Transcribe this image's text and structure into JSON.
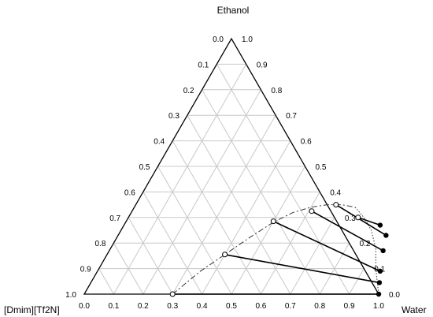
{
  "chart_data": {
    "type": "ternary",
    "title": "",
    "vertices": {
      "top": "Ethanol",
      "left": "[Dmim][Tf2N]",
      "right": "Water"
    },
    "tick_labels": {
      "bottom": [
        "0.0",
        "0.1",
        "0.2",
        "0.3",
        "0.4",
        "0.5",
        "0.6",
        "0.7",
        "0.8",
        "0.9",
        "1.0"
      ],
      "left": [
        "0.0",
        "0.1",
        "0.2",
        "0.3",
        "0.4",
        "0.5",
        "0.6",
        "0.7",
        "0.8",
        "0.9",
        "1.0"
      ],
      "right": [
        "1.0",
        "0.9",
        "0.8",
        "0.7",
        "0.6",
        "0.5",
        "0.4",
        "0.3",
        "0.2",
        "0.1",
        "0.0"
      ]
    },
    "grid": true,
    "composition_note": "points given as [water, ethanol] mole fractions; [Dmim][Tf2N] = 1 - water - ethanol",
    "binodal_curve": {
      "style": "dash-dot",
      "points": [
        [
          0.3,
          0.0
        ],
        [
          0.35,
          0.09
        ],
        [
          0.4,
          0.155
        ],
        [
          0.45,
          0.22
        ],
        [
          0.5,
          0.28
        ],
        [
          0.55,
          0.32
        ],
        [
          0.6,
          0.34
        ],
        [
          0.65,
          0.35
        ],
        [
          0.7,
          0.35
        ],
        [
          0.75,
          0.34
        ]
      ]
    },
    "right_branch": {
      "style": "dotted",
      "points": [
        [
          0.75,
          0.34
        ],
        [
          0.8,
          0.3
        ],
        [
          0.85,
          0.25
        ],
        [
          0.9,
          0.18
        ],
        [
          0.94,
          0.1
        ],
        [
          0.97,
          0.05
        ],
        [
          1.0,
          0.0
        ]
      ]
    },
    "tie_lines": [
      {
        "ionic_liquid_rich": [
          0.3,
          0.0
        ],
        "water_rich": [
          1.0,
          0.0
        ]
      },
      {
        "ionic_liquid_rich": [
          0.4,
          0.155
        ],
        "water_rich": [
          0.98,
          0.045
        ]
      },
      {
        "ionic_liquid_rich": [
          0.5,
          0.285
        ],
        "water_rich": [
          0.96,
          0.09
        ]
      },
      {
        "ionic_liquid_rich": [
          0.61,
          0.325
        ],
        "water_rich": [
          0.93,
          0.17
        ]
      },
      {
        "ionic_liquid_rich": [
          0.68,
          0.35
        ],
        "water_rich": [
          0.91,
          0.23
        ]
      },
      {
        "ionic_liquid_rich": [
          0.78,
          0.3
        ],
        "water_rich": [
          0.87,
          0.27
        ]
      }
    ],
    "markers": {
      "ionic_liquid_rich": "open-circle",
      "water_rich": "filled-circle"
    }
  }
}
